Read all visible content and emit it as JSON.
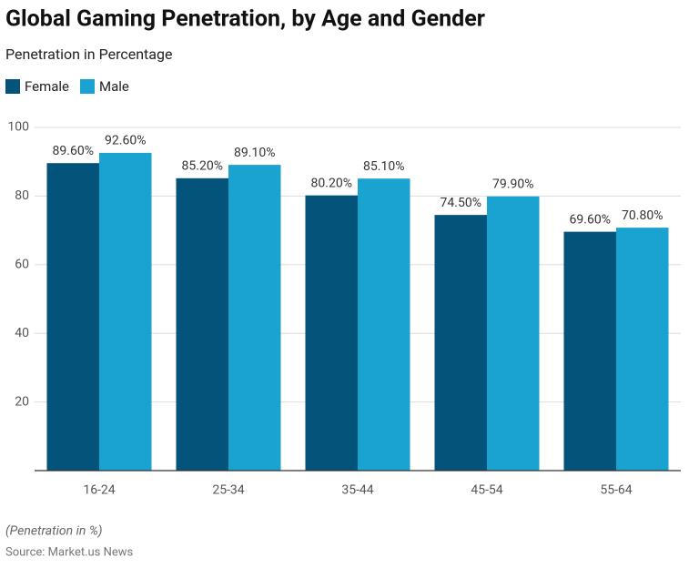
{
  "chart_data": {
    "type": "bar",
    "title": "Global Gaming Penetration, by Age and Gender",
    "subtitle": "Penetration in Percentage",
    "categories": [
      "16-24",
      "25-34",
      "35-44",
      "45-54",
      "55-64"
    ],
    "series": [
      {
        "name": "Female",
        "color": "#03537a",
        "values": [
          89.6,
          85.2,
          80.2,
          74.5,
          69.6
        ],
        "value_labels": [
          "89.60%",
          "85.20%",
          "80.20%",
          "74.50%",
          "69.60%"
        ]
      },
      {
        "name": "Male",
        "color": "#1aa3d0",
        "values": [
          92.6,
          89.1,
          85.1,
          79.9,
          70.8
        ],
        "value_labels": [
          "92.60%",
          "89.10%",
          "85.10%",
          "79.90%",
          "70.80%"
        ]
      }
    ],
    "ylim": [
      0,
      100
    ],
    "yticks": [
      20,
      40,
      60,
      80,
      100
    ],
    "grid": true,
    "note": "(Penetration in %)",
    "source": "Source: Market.us News"
  }
}
